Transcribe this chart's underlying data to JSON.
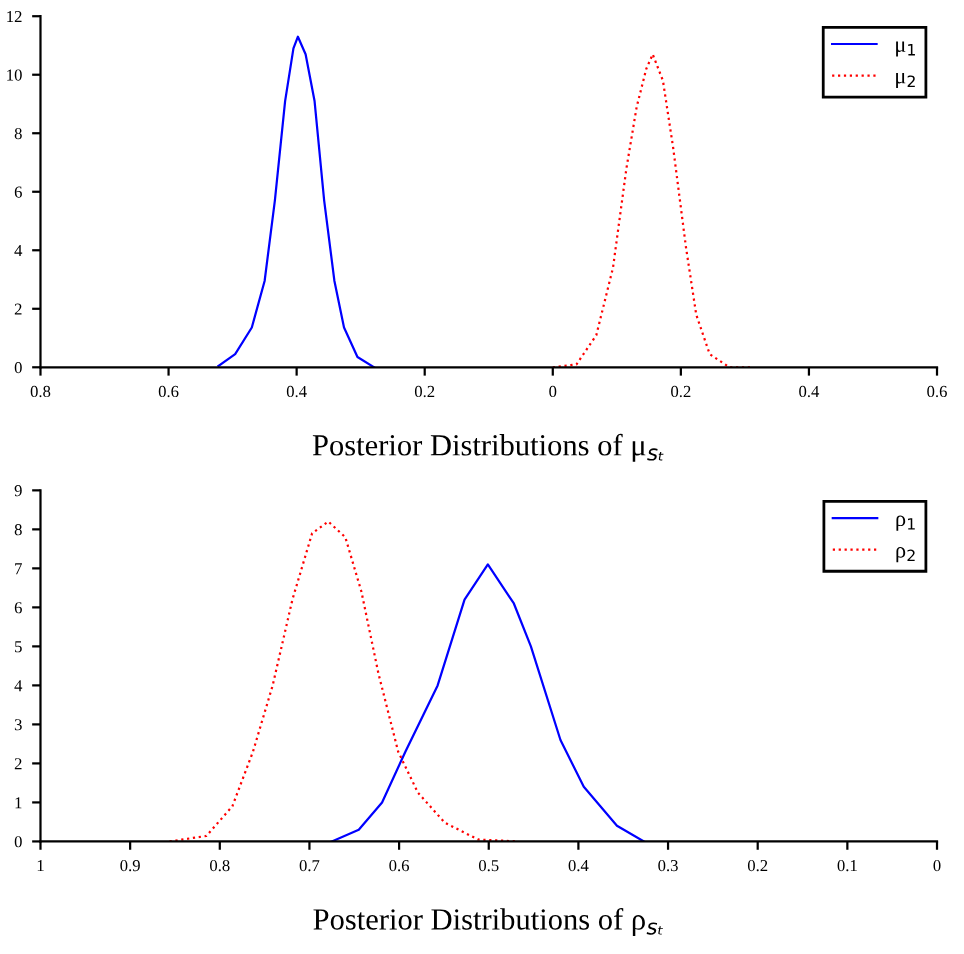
{
  "chart_data": [
    {
      "type": "line",
      "xlabel": "Posterior Distributions of μ$_{sₜ}$",
      "xlim": [
        0.8,
        -0.6
      ],
      "xticks": [
        0.8,
        0.6,
        0.4,
        0.2,
        0,
        {
          "value": -0.2,
          "label": "0.2"
        },
        {
          "value": -0.4,
          "label": "0.4"
        },
        {
          "value": -0.6,
          "label": "0.6"
        }
      ],
      "ylim": [
        0,
        12
      ],
      "yticks": [
        0,
        2,
        4,
        6,
        8,
        10,
        12
      ],
      "legend": "top right",
      "grid": false,
      "series": [
        {
          "name": "μ$_{1}$",
          "color": "#0000ff",
          "line_style": "solid",
          "x": [
            0.522,
            0.496,
            0.47,
            0.45,
            0.434,
            0.418,
            0.405,
            0.398,
            0.386,
            0.372,
            0.357,
            0.341,
            0.326,
            0.305,
            0.279
          ],
          "values": [
            0.05,
            0.45,
            1.36,
            2.95,
            5.7,
            9.1,
            10.9,
            11.3,
            10.7,
            9.1,
            5.7,
            2.95,
            1.36,
            0.35,
            0
          ]
        },
        {
          "name": "μ$_{2}$",
          "color": "#ff0000",
          "line_style": "dotted",
          "x": [
            0.0,
            -0.037,
            -0.068,
            -0.094,
            -0.115,
            -0.131,
            -0.146,
            -0.156,
            -0.172,
            -0.188,
            -0.208,
            -0.224,
            -0.245,
            -0.276,
            -0.312
          ],
          "values": [
            0,
            0.1,
            1.1,
            3.4,
            6.8,
            8.9,
            10.2,
            10.7,
            9.8,
            7.5,
            4.1,
            1.8,
            0.45,
            0,
            0
          ]
        }
      ]
    },
    {
      "type": "line",
      "xlabel": "Posterior Distributions of ρ$_{sₜ}$",
      "xlim": [
        1,
        0
      ],
      "xticks": [
        1,
        0.9,
        0.8,
        0.7,
        0.6,
        0.5,
        0.4,
        0.3,
        0.2,
        0.1,
        0
      ],
      "ylim": [
        0,
        9
      ],
      "yticks": [
        0,
        1,
        2,
        3,
        4,
        5,
        6,
        7,
        8,
        9
      ],
      "legend": "top right",
      "grid": false,
      "series": [
        {
          "name": "ρ$_{1}$",
          "color": "#0000ff",
          "line_style": "solid",
          "x": [
            0.675,
            0.645,
            0.619,
            0.593,
            0.557,
            0.527,
            0.501,
            0.472,
            0.453,
            0.42,
            0.394,
            0.357,
            0.327
          ],
          "values": [
            0,
            0.3,
            1.0,
            2.3,
            4.0,
            6.2,
            7.1,
            6.1,
            5.0,
            2.6,
            1.4,
            0.4,
            0
          ]
        },
        {
          "name": "ρ$_{2}$",
          "color": "#ff0000",
          "line_style": "dotted",
          "x": [
            0.856,
            0.815,
            0.786,
            0.763,
            0.741,
            0.719,
            0.697,
            0.679,
            0.66,
            0.642,
            0.623,
            0.601,
            0.579,
            0.549,
            0.512,
            0.468
          ],
          "values": [
            0,
            0.14,
            0.9,
            2.3,
            4.0,
            6.2,
            7.9,
            8.2,
            7.8,
            6.4,
            4.3,
            2.3,
            1.25,
            0.48,
            0.05,
            0
          ]
        }
      ]
    }
  ]
}
